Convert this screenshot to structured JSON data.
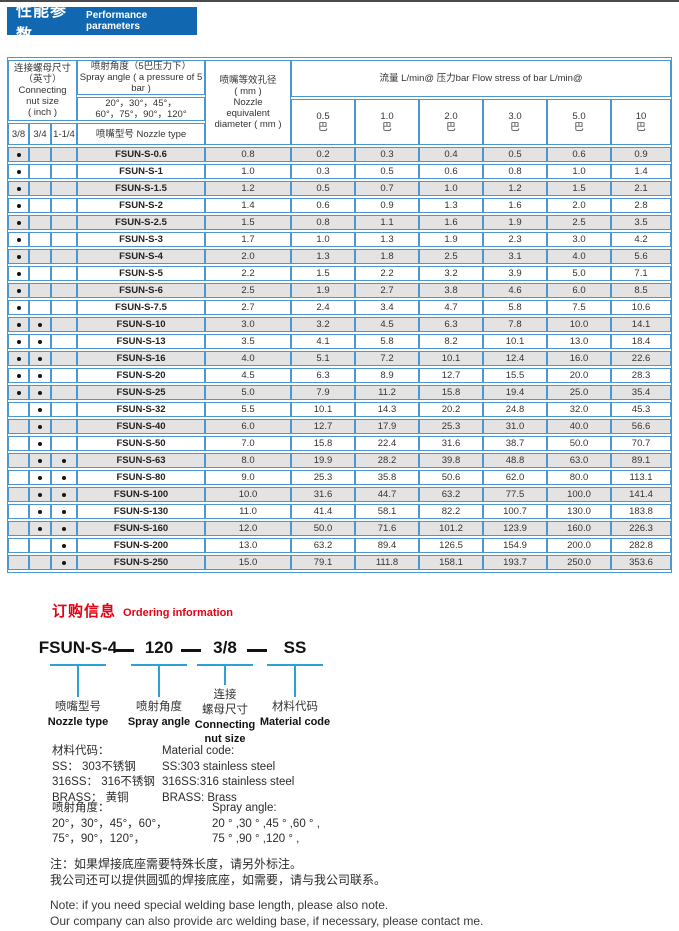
{
  "page_title": {
    "cn": "性能参数",
    "en": "Performance parameters"
  },
  "colors": {
    "header_bar_blue": "#1268b0",
    "accent_red": "#e60213",
    "table_border_blue": "#4a97d4",
    "row_alt_gray": "#e3e3e4",
    "connector_blue": "#2ea0d9"
  },
  "table": {
    "header": {
      "nut_group": "连接螺母尺寸\n（英寸）\nConnecting\nnut size\n( inch )",
      "nut_cols": [
        "3/8",
        "3/4",
        "1-1/4"
      ],
      "spray_title": "喷射角度（5巴压力下）\nSpray angle ( a pressure of 5 bar )",
      "spray_angles": "20°，30°，45°，\n60°，75°，90°，120°",
      "nozzle_type": "喷嘴型号  Nozzle type",
      "diameter": "喷嘴等效孔径\n( mm )\nNozzle\nequivalent\ndiameter ( mm )",
      "flow_title": "流量 L/min@  压力bar   Flow stress of bar L/min@",
      "pressures": [
        "0.5\n巴",
        "1.0\n巴",
        "2.0\n巴",
        "3.0\n巴",
        "5.0\n巴",
        "10\n巴"
      ]
    },
    "rows": [
      {
        "model": "FSUN-S-0.6",
        "nuts": [
          1,
          0,
          0
        ],
        "diameter": "0.8",
        "flows": [
          "0.2",
          "0.3",
          "0.4",
          "0.5",
          "0.6",
          "0.9"
        ]
      },
      {
        "model": "FSUN-S-1",
        "nuts": [
          1,
          0,
          0
        ],
        "diameter": "1.0",
        "flows": [
          "0.3",
          "0.5",
          "0.6",
          "0.8",
          "1.0",
          "1.4"
        ]
      },
      {
        "model": "FSUN-S-1.5",
        "nuts": [
          1,
          0,
          0
        ],
        "diameter": "1.2",
        "flows": [
          "0.5",
          "0.7",
          "1.0",
          "1.2",
          "1.5",
          "2.1"
        ]
      },
      {
        "model": "FSUN-S-2",
        "nuts": [
          1,
          0,
          0
        ],
        "diameter": "1.4",
        "flows": [
          "0.6",
          "0.9",
          "1.3",
          "1.6",
          "2.0",
          "2.8"
        ]
      },
      {
        "model": "FSUN-S-2.5",
        "nuts": [
          1,
          0,
          0
        ],
        "diameter": "1.5",
        "flows": [
          "0.8",
          "1.1",
          "1.6",
          "1.9",
          "2.5",
          "3.5"
        ]
      },
      {
        "model": "FSUN-S-3",
        "nuts": [
          1,
          0,
          0
        ],
        "diameter": "1.7",
        "flows": [
          "1.0",
          "1.3",
          "1.9",
          "2.3",
          "3.0",
          "4.2"
        ]
      },
      {
        "model": "FSUN-S-4",
        "nuts": [
          1,
          0,
          0
        ],
        "diameter": "2.0",
        "flows": [
          "1.3",
          "1.8",
          "2.5",
          "3.1",
          "4.0",
          "5.6"
        ]
      },
      {
        "model": "FSUN-S-5",
        "nuts": [
          1,
          0,
          0
        ],
        "diameter": "2.2",
        "flows": [
          "1.5",
          "2.2",
          "3.2",
          "3.9",
          "5.0",
          "7.1"
        ]
      },
      {
        "model": "FSUN-S-6",
        "nuts": [
          1,
          0,
          0
        ],
        "diameter": "2.5",
        "flows": [
          "1.9",
          "2.7",
          "3.8",
          "4.6",
          "6.0",
          "8.5"
        ]
      },
      {
        "model": "FSUN-S-7.5",
        "nuts": [
          1,
          0,
          0
        ],
        "diameter": "2.7",
        "flows": [
          "2.4",
          "3.4",
          "4.7",
          "5.8",
          "7.5",
          "10.6"
        ]
      },
      {
        "model": "FSUN-S-10",
        "nuts": [
          1,
          1,
          0
        ],
        "diameter": "3.0",
        "flows": [
          "3.2",
          "4.5",
          "6.3",
          "7.8",
          "10.0",
          "14.1"
        ]
      },
      {
        "model": "FSUN-S-13",
        "nuts": [
          1,
          1,
          0
        ],
        "diameter": "3.5",
        "flows": [
          "4.1",
          "5.8",
          "8.2",
          "10.1",
          "13.0",
          "18.4"
        ]
      },
      {
        "model": "FSUN-S-16",
        "nuts": [
          1,
          1,
          0
        ],
        "diameter": "4.0",
        "flows": [
          "5.1",
          "7.2",
          "10.1",
          "12.4",
          "16.0",
          "22.6"
        ]
      },
      {
        "model": "FSUN-S-20",
        "nuts": [
          1,
          1,
          0
        ],
        "diameter": "4.5",
        "flows": [
          "6.3",
          "8.9",
          "12.7",
          "15.5",
          "20.0",
          "28.3"
        ]
      },
      {
        "model": "FSUN-S-25",
        "nuts": [
          1,
          1,
          0
        ],
        "diameter": "5.0",
        "flows": [
          "7.9",
          "11.2",
          "15.8",
          "19.4",
          "25.0",
          "35.4"
        ]
      },
      {
        "model": "FSUN-S-32",
        "nuts": [
          0,
          1,
          0
        ],
        "diameter": "5.5",
        "flows": [
          "10.1",
          "14.3",
          "20.2",
          "24.8",
          "32.0",
          "45.3"
        ]
      },
      {
        "model": "FSUN-S-40",
        "nuts": [
          0,
          1,
          0
        ],
        "diameter": "6.0",
        "flows": [
          "12.7",
          "17.9",
          "25.3",
          "31.0",
          "40.0",
          "56.6"
        ]
      },
      {
        "model": "FSUN-S-50",
        "nuts": [
          0,
          1,
          0
        ],
        "diameter": "7.0",
        "flows": [
          "15.8",
          "22.4",
          "31.6",
          "38.7",
          "50.0",
          "70.7"
        ]
      },
      {
        "model": "FSUN-S-63",
        "nuts": [
          0,
          1,
          1
        ],
        "diameter": "8.0",
        "flows": [
          "19.9",
          "28.2",
          "39.8",
          "48.8",
          "63.0",
          "89.1"
        ]
      },
      {
        "model": "FSUN-S-80",
        "nuts": [
          0,
          1,
          1
        ],
        "diameter": "9.0",
        "flows": [
          "25.3",
          "35.8",
          "50.6",
          "62.0",
          "80.0",
          "113.1"
        ]
      },
      {
        "model": "FSUN-S-100",
        "nuts": [
          0,
          1,
          1
        ],
        "diameter": "10.0",
        "flows": [
          "31.6",
          "44.7",
          "63.2",
          "77.5",
          "100.0",
          "141.4"
        ]
      },
      {
        "model": "FSUN-S-130",
        "nuts": [
          0,
          1,
          1
        ],
        "diameter": "11.0",
        "flows": [
          "41.4",
          "58.1",
          "82.2",
          "100.7",
          "130.0",
          "183.8"
        ]
      },
      {
        "model": "FSUN-S-160",
        "nuts": [
          0,
          1,
          1
        ],
        "diameter": "12.0",
        "flows": [
          "50.0",
          "71.6",
          "101.2",
          "123.9",
          "160.0",
          "226.3"
        ]
      },
      {
        "model": "FSUN-S-200",
        "nuts": [
          0,
          0,
          1
        ],
        "diameter": "13.0",
        "flows": [
          "63.2",
          "89.4",
          "126.5",
          "154.9",
          "200.0",
          "282.8"
        ]
      },
      {
        "model": "FSUN-S-250",
        "nuts": [
          0,
          0,
          1
        ],
        "diameter": "15.0",
        "flows": [
          "79.1",
          "111.8",
          "158.1",
          "193.7",
          "250.0",
          "353.6"
        ]
      }
    ]
  },
  "ordering": {
    "title_cn": "订购信息",
    "title_en": "Ordering information",
    "dash": "—",
    "code_parts": [
      {
        "code": "FSUN-S-4",
        "label_cn": "喷嘴型号",
        "label_en": "Nozzle type"
      },
      {
        "code": "120",
        "label_cn": "喷射角度",
        "label_en": "Spray angle"
      },
      {
        "code": "3/8",
        "label_cn": "连接\n螺母尺寸",
        "label_en": "Connecting\nnut size"
      },
      {
        "code": "SS",
        "label_cn": "材料代码",
        "label_en": "Material code"
      }
    ]
  },
  "material_code": {
    "cn": "材料代码：\nSS： 303不锈钢\n316SS： 316不锈钢\nBRASS： 黄铜",
    "en": "Material code:\nSS:303 stainless steel\n316SS:316 stainless steel\nBRASS: Brass"
  },
  "spray_angle": {
    "cn": "喷射角度：\n20°，30°，45°，60°，\n75°，90°，120°，",
    "en": "Spray angle:\n20 ° ,30 ° ,45 ° ,60 ° ,\n75 ° ,90 ° ,120 ° ,"
  },
  "notes": {
    "cn": "注：如果焊接底座需要特殊长度，请另外标注。\n我公司还可以提供圆弧的焊接底座，如需要，请与我公司联系。",
    "en": "Note: if you need special welding base length, please also note.\nOur company can also provide arc welding base, if necessary, please contact me."
  }
}
